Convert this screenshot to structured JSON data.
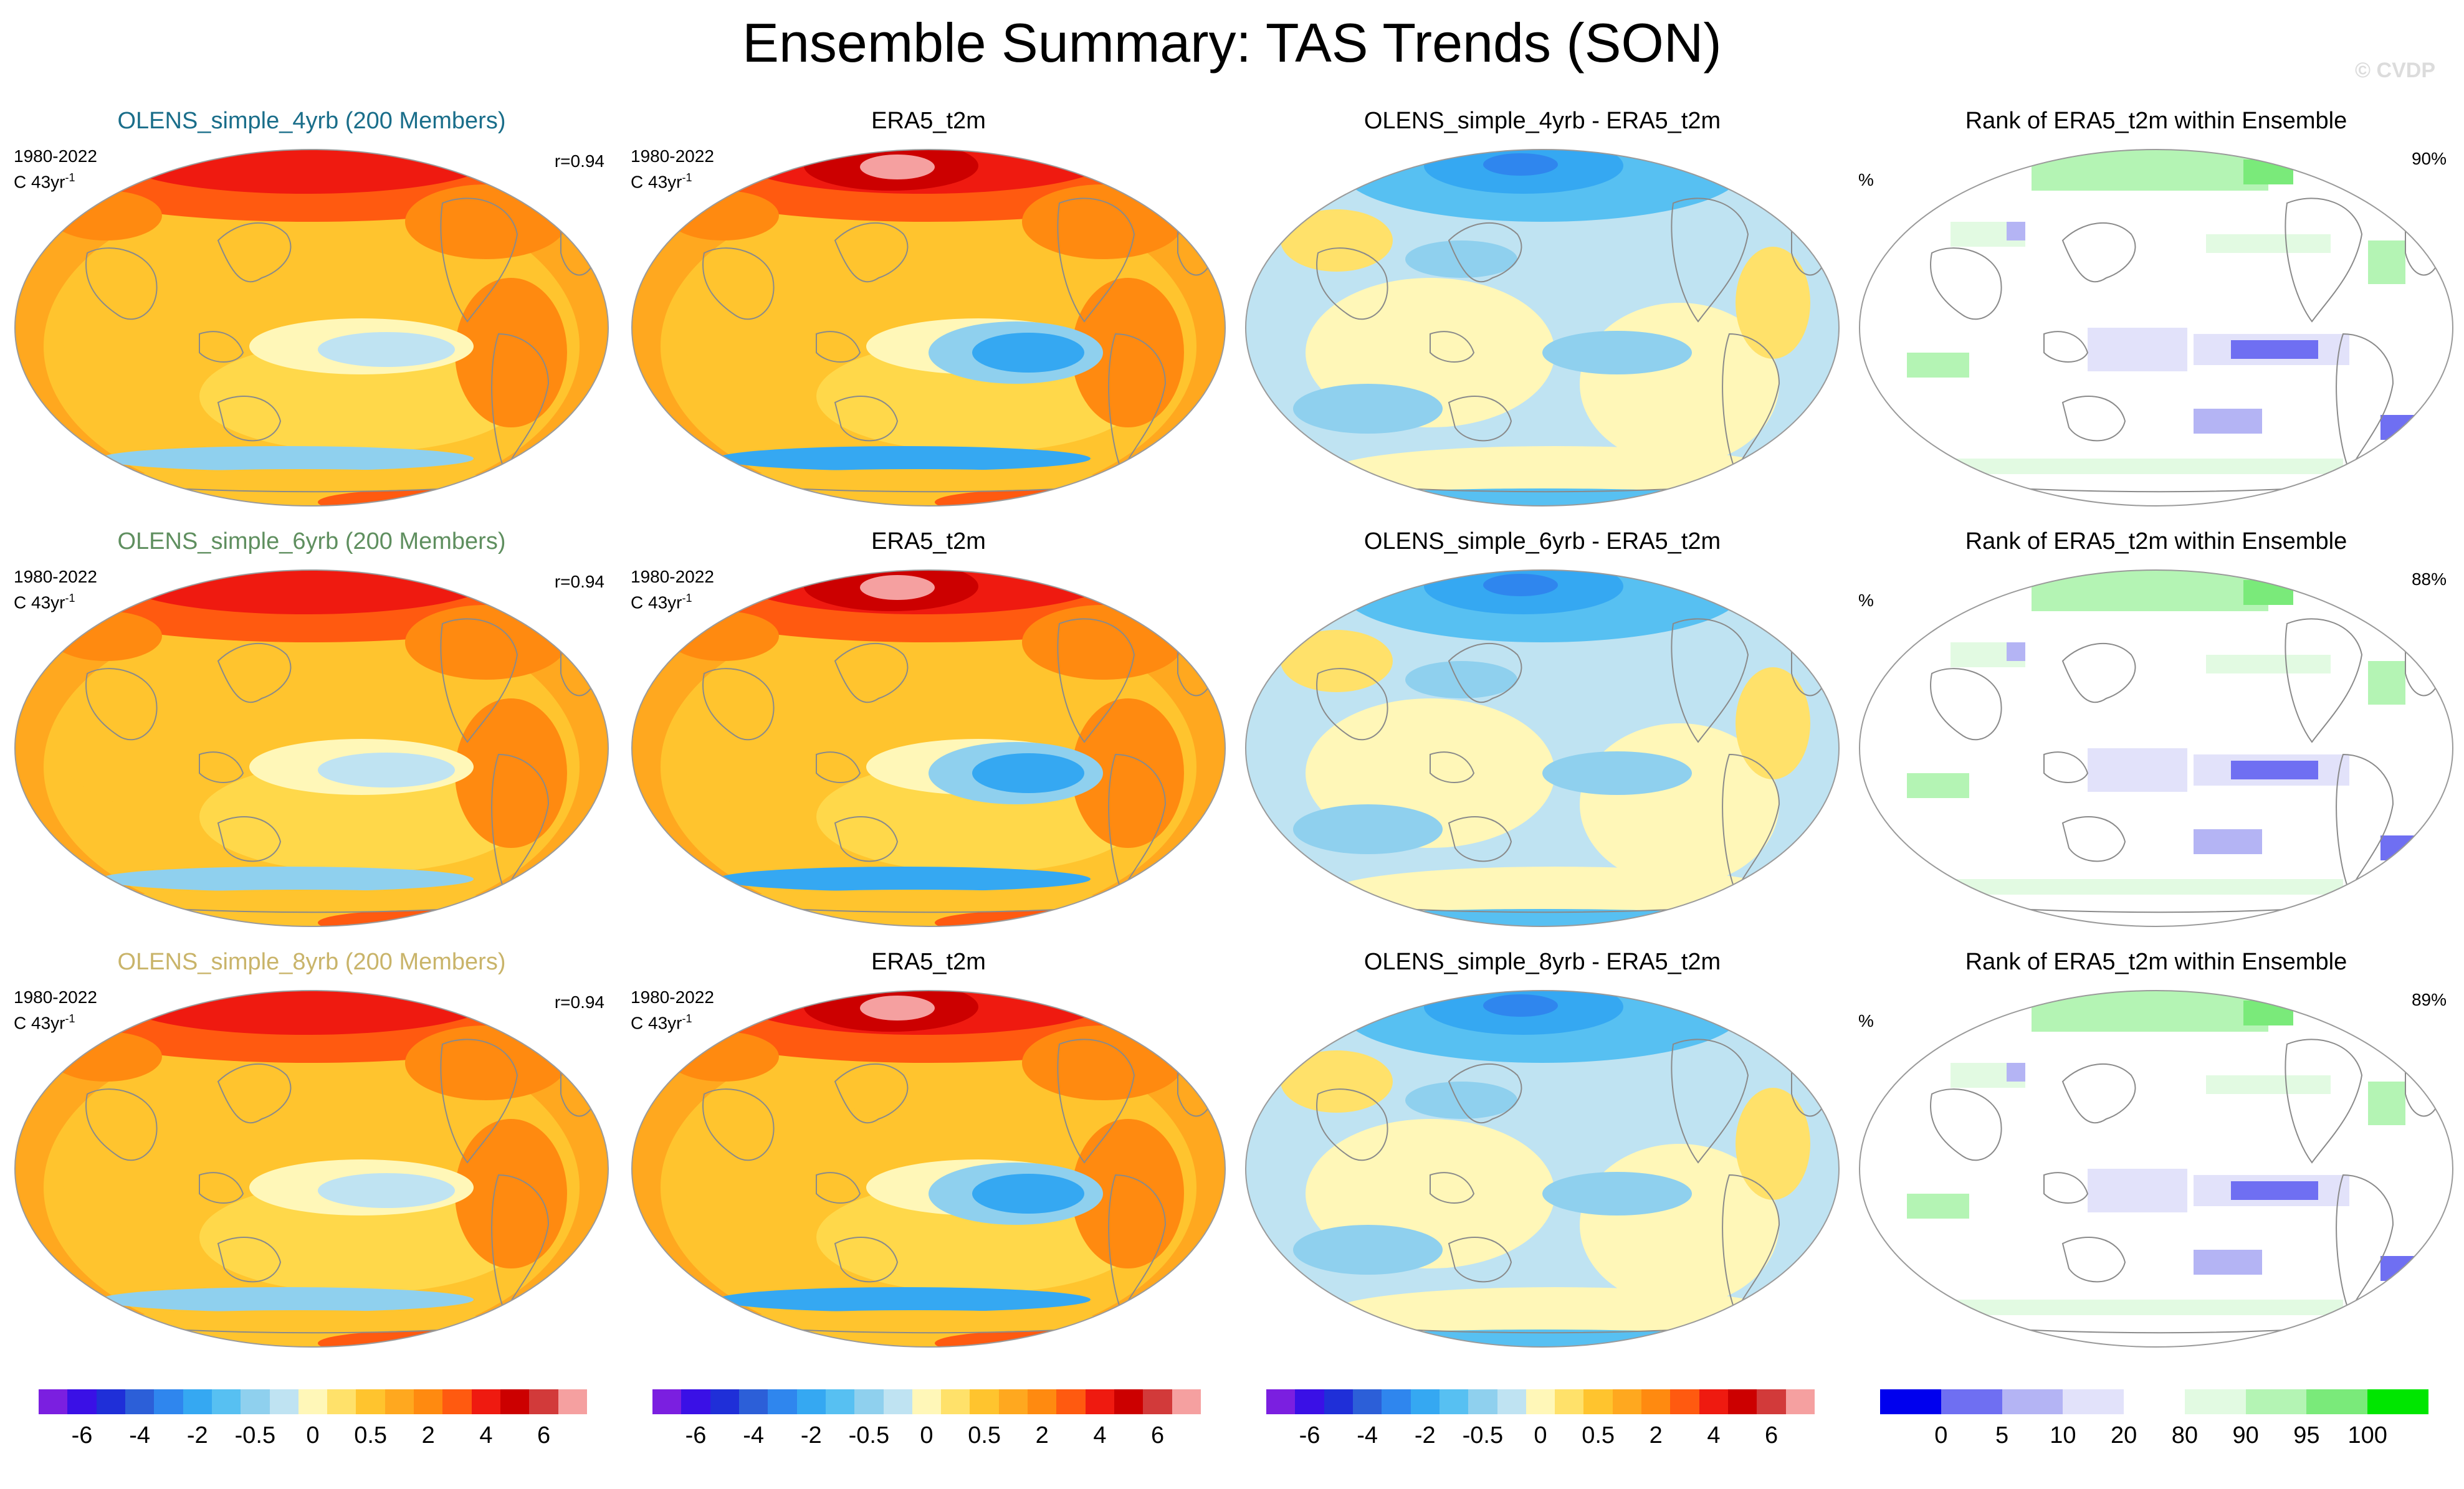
{
  "title": "Ensemble Summary: TAS Trends (SON)",
  "watermark": "© CVDP",
  "rows": [
    {
      "model": {
        "title": "OLENS_simple_4yrb (200 Members)",
        "title_color": "#1a6e8a",
        "period": "1980-2022",
        "units": "C 43yr",
        "units_exp": "-1",
        "r": "r=0.94"
      },
      "obs": {
        "title": "ERA5_t2m",
        "period": "1980-2022",
        "units": "C 43yr",
        "units_exp": "-1"
      },
      "diff": {
        "title": "OLENS_simple_4yrb - ERA5_t2m"
      },
      "rank": {
        "title": "Rank of ERA5_t2m within Ensemble",
        "unit": "%",
        "pct": "90%"
      }
    },
    {
      "model": {
        "title": "OLENS_simple_6yrb (200 Members)",
        "title_color": "#5f8f5f",
        "period": "1980-2022",
        "units": "C 43yr",
        "units_exp": "-1",
        "r": "r=0.94"
      },
      "obs": {
        "title": "ERA5_t2m",
        "period": "1980-2022",
        "units": "C 43yr",
        "units_exp": "-1"
      },
      "diff": {
        "title": "OLENS_simple_6yrb - ERA5_t2m"
      },
      "rank": {
        "title": "Rank of ERA5_t2m within Ensemble",
        "unit": "%",
        "pct": "88%"
      }
    },
    {
      "model": {
        "title": "OLENS_simple_8yrb (200 Members)",
        "title_color": "#c9b46a",
        "period": "1980-2022",
        "units": "C 43yr",
        "units_exp": "-1",
        "r": "r=0.94"
      },
      "obs": {
        "title": "ERA5_t2m",
        "period": "1980-2022",
        "units": "C 43yr",
        "units_exp": "-1"
      },
      "diff": {
        "title": "OLENS_simple_8yrb - ERA5_t2m"
      },
      "rank": {
        "title": "Rank of ERA5_t2m within Ensemble",
        "unit": "%",
        "pct": "89%"
      }
    }
  ],
  "colorbars": {
    "trend": {
      "colors": [
        "#7b1fe0",
        "#3a10e6",
        "#1f2fd8",
        "#2c5fd8",
        "#2f86ee",
        "#35a8f2",
        "#57c0f2",
        "#8fd0ee",
        "#bfe3f2",
        "#fff7b8",
        "#ffe16a",
        "#ffc42e",
        "#ffa81f",
        "#ff8a10",
        "#ff5a10",
        "#ef1a10",
        "#cc0000",
        "#d23a3a",
        "#f5a0a0"
      ],
      "labels": [
        "-6",
        "-4",
        "-2",
        "-0.5",
        "0",
        "0.5",
        "2",
        "4",
        "6"
      ]
    },
    "rank": {
      "colors": [
        "#0000ee",
        "#6f6ff2",
        "#b4b4f4",
        "#e2e2fa",
        "#ffffff",
        "#e2fae2",
        "#b4f4b4",
        "#7aea7a",
        "#00e600"
      ],
      "labels": [
        "0",
        "5",
        "10",
        "20",
        "80",
        "90",
        "95",
        "100"
      ]
    }
  }
}
